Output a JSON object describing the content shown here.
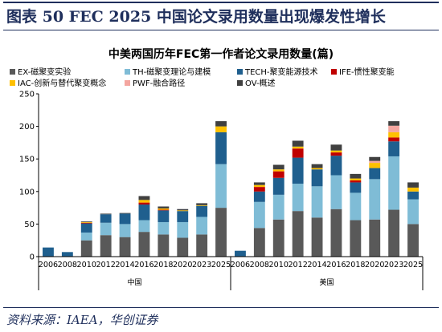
{
  "figure": {
    "title": "图表 50   FEC 2025 中国论文录用数量出现爆发性增长",
    "source": "资料来源：IAEA，华创证券"
  },
  "chart_data": {
    "type": "bar",
    "stacked": true,
    "title": "中美两国历年FEC第一作者论文录用数量(篇)",
    "legend_position": "top",
    "grid": false,
    "ylim": [
      0,
      250
    ],
    "yticks": [
      0,
      50,
      100,
      150,
      200,
      250
    ],
    "groups": [
      {
        "name": "中国",
        "categories": [
          "2006",
          "2008",
          "2010",
          "2012",
          "2014",
          "2016",
          "2018",
          "2020",
          "2023",
          "2025"
        ]
      },
      {
        "name": "美国",
        "categories": [
          "2006",
          "2008",
          "2010",
          "2012",
          "2014",
          "2016",
          "2018",
          "2020",
          "2023",
          "2025"
        ]
      }
    ],
    "series": [
      {
        "name": "EX-磁聚变实验",
        "color": "#595959",
        "values": [
          0,
          0,
          25,
          33,
          30,
          38,
          34,
          29,
          34,
          75,
          0,
          44,
          57,
          70,
          60,
          73,
          56,
          57,
          72,
          50
        ]
      },
      {
        "name": "TH-磁聚变理论与建模",
        "color": "#7fbcd6",
        "values": [
          0,
          0,
          12,
          19,
          20,
          18,
          19,
          24,
          27,
          67,
          0,
          40,
          38,
          42,
          48,
          52,
          42,
          62,
          82,
          38
        ]
      },
      {
        "name": "TECH-聚变能源技术",
        "color": "#1f5f8e",
        "values": [
          14,
          7,
          14,
          13,
          16,
          24,
          18,
          17,
          17,
          49,
          9,
          16,
          26,
          40,
          26,
          30,
          16,
          17,
          23,
          12
        ]
      },
      {
        "name": "IFE-惯性聚变能",
        "color": "#c00000",
        "values": [
          0,
          0,
          1,
          0,
          0,
          3,
          1,
          0,
          0,
          0,
          0,
          7,
          10,
          14,
          0,
          5,
          3,
          0,
          6,
          0
        ]
      },
      {
        "name": "IAC-创新与替代聚变概念",
        "color": "#ffc000",
        "values": [
          0,
          0,
          1,
          0,
          0,
          4,
          2,
          1,
          1,
          9,
          0,
          3,
          3,
          3,
          2,
          3,
          3,
          8,
          8,
          6
        ]
      },
      {
        "name": "PWF-融合路径",
        "color": "#f4a6a0",
        "values": [
          0,
          0,
          0,
          0,
          0,
          0,
          0,
          0,
          0,
          0,
          0,
          0,
          0,
          0,
          0,
          0,
          0,
          3,
          10,
          0
        ]
      },
      {
        "name": "OV-概述",
        "color": "#404040",
        "values": [
          0,
          0,
          1,
          1,
          1,
          6,
          3,
          2,
          3,
          8,
          0,
          4,
          7,
          9,
          6,
          9,
          7,
          6,
          7,
          8
        ]
      }
    ]
  }
}
